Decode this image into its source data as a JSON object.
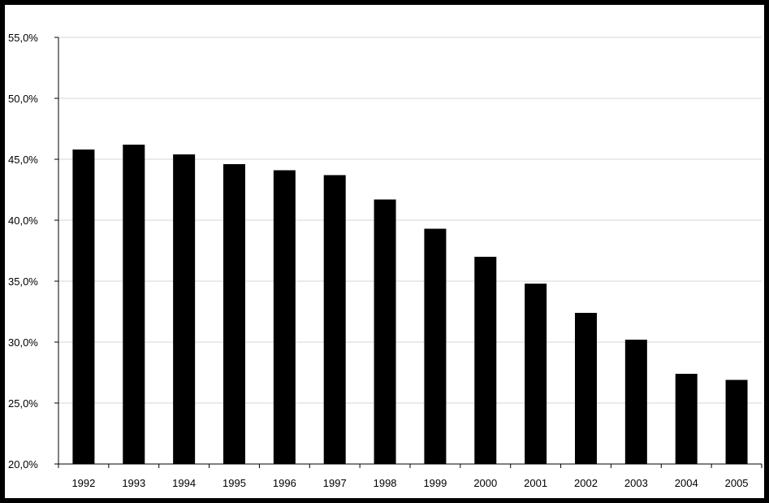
{
  "chart_data": {
    "type": "bar",
    "title": "",
    "xlabel": "",
    "ylabel": "",
    "categories": [
      "1992",
      "1993",
      "1994",
      "1995",
      "1996",
      "1997",
      "1998",
      "1999",
      "2000",
      "2001",
      "2002",
      "2003",
      "2004",
      "2005"
    ],
    "values": [
      45.8,
      46.2,
      45.4,
      44.6,
      44.1,
      43.7,
      41.7,
      39.3,
      37.0,
      34.8,
      32.4,
      30.2,
      27.4,
      26.9
    ],
    "ylim": [
      20,
      55
    ],
    "y_ticks": [
      "20,0%",
      "25,0%",
      "30,0%",
      "35,0%",
      "40,0%",
      "45,0%",
      "50,0%",
      "55,0%"
    ],
    "y_tick_values": [
      20,
      25,
      30,
      35,
      40,
      45,
      50,
      55
    ],
    "grid": true,
    "legend": "none",
    "colors": {
      "bar": "#000000",
      "grid": "#d4d4d4",
      "frame": "#000000"
    }
  }
}
